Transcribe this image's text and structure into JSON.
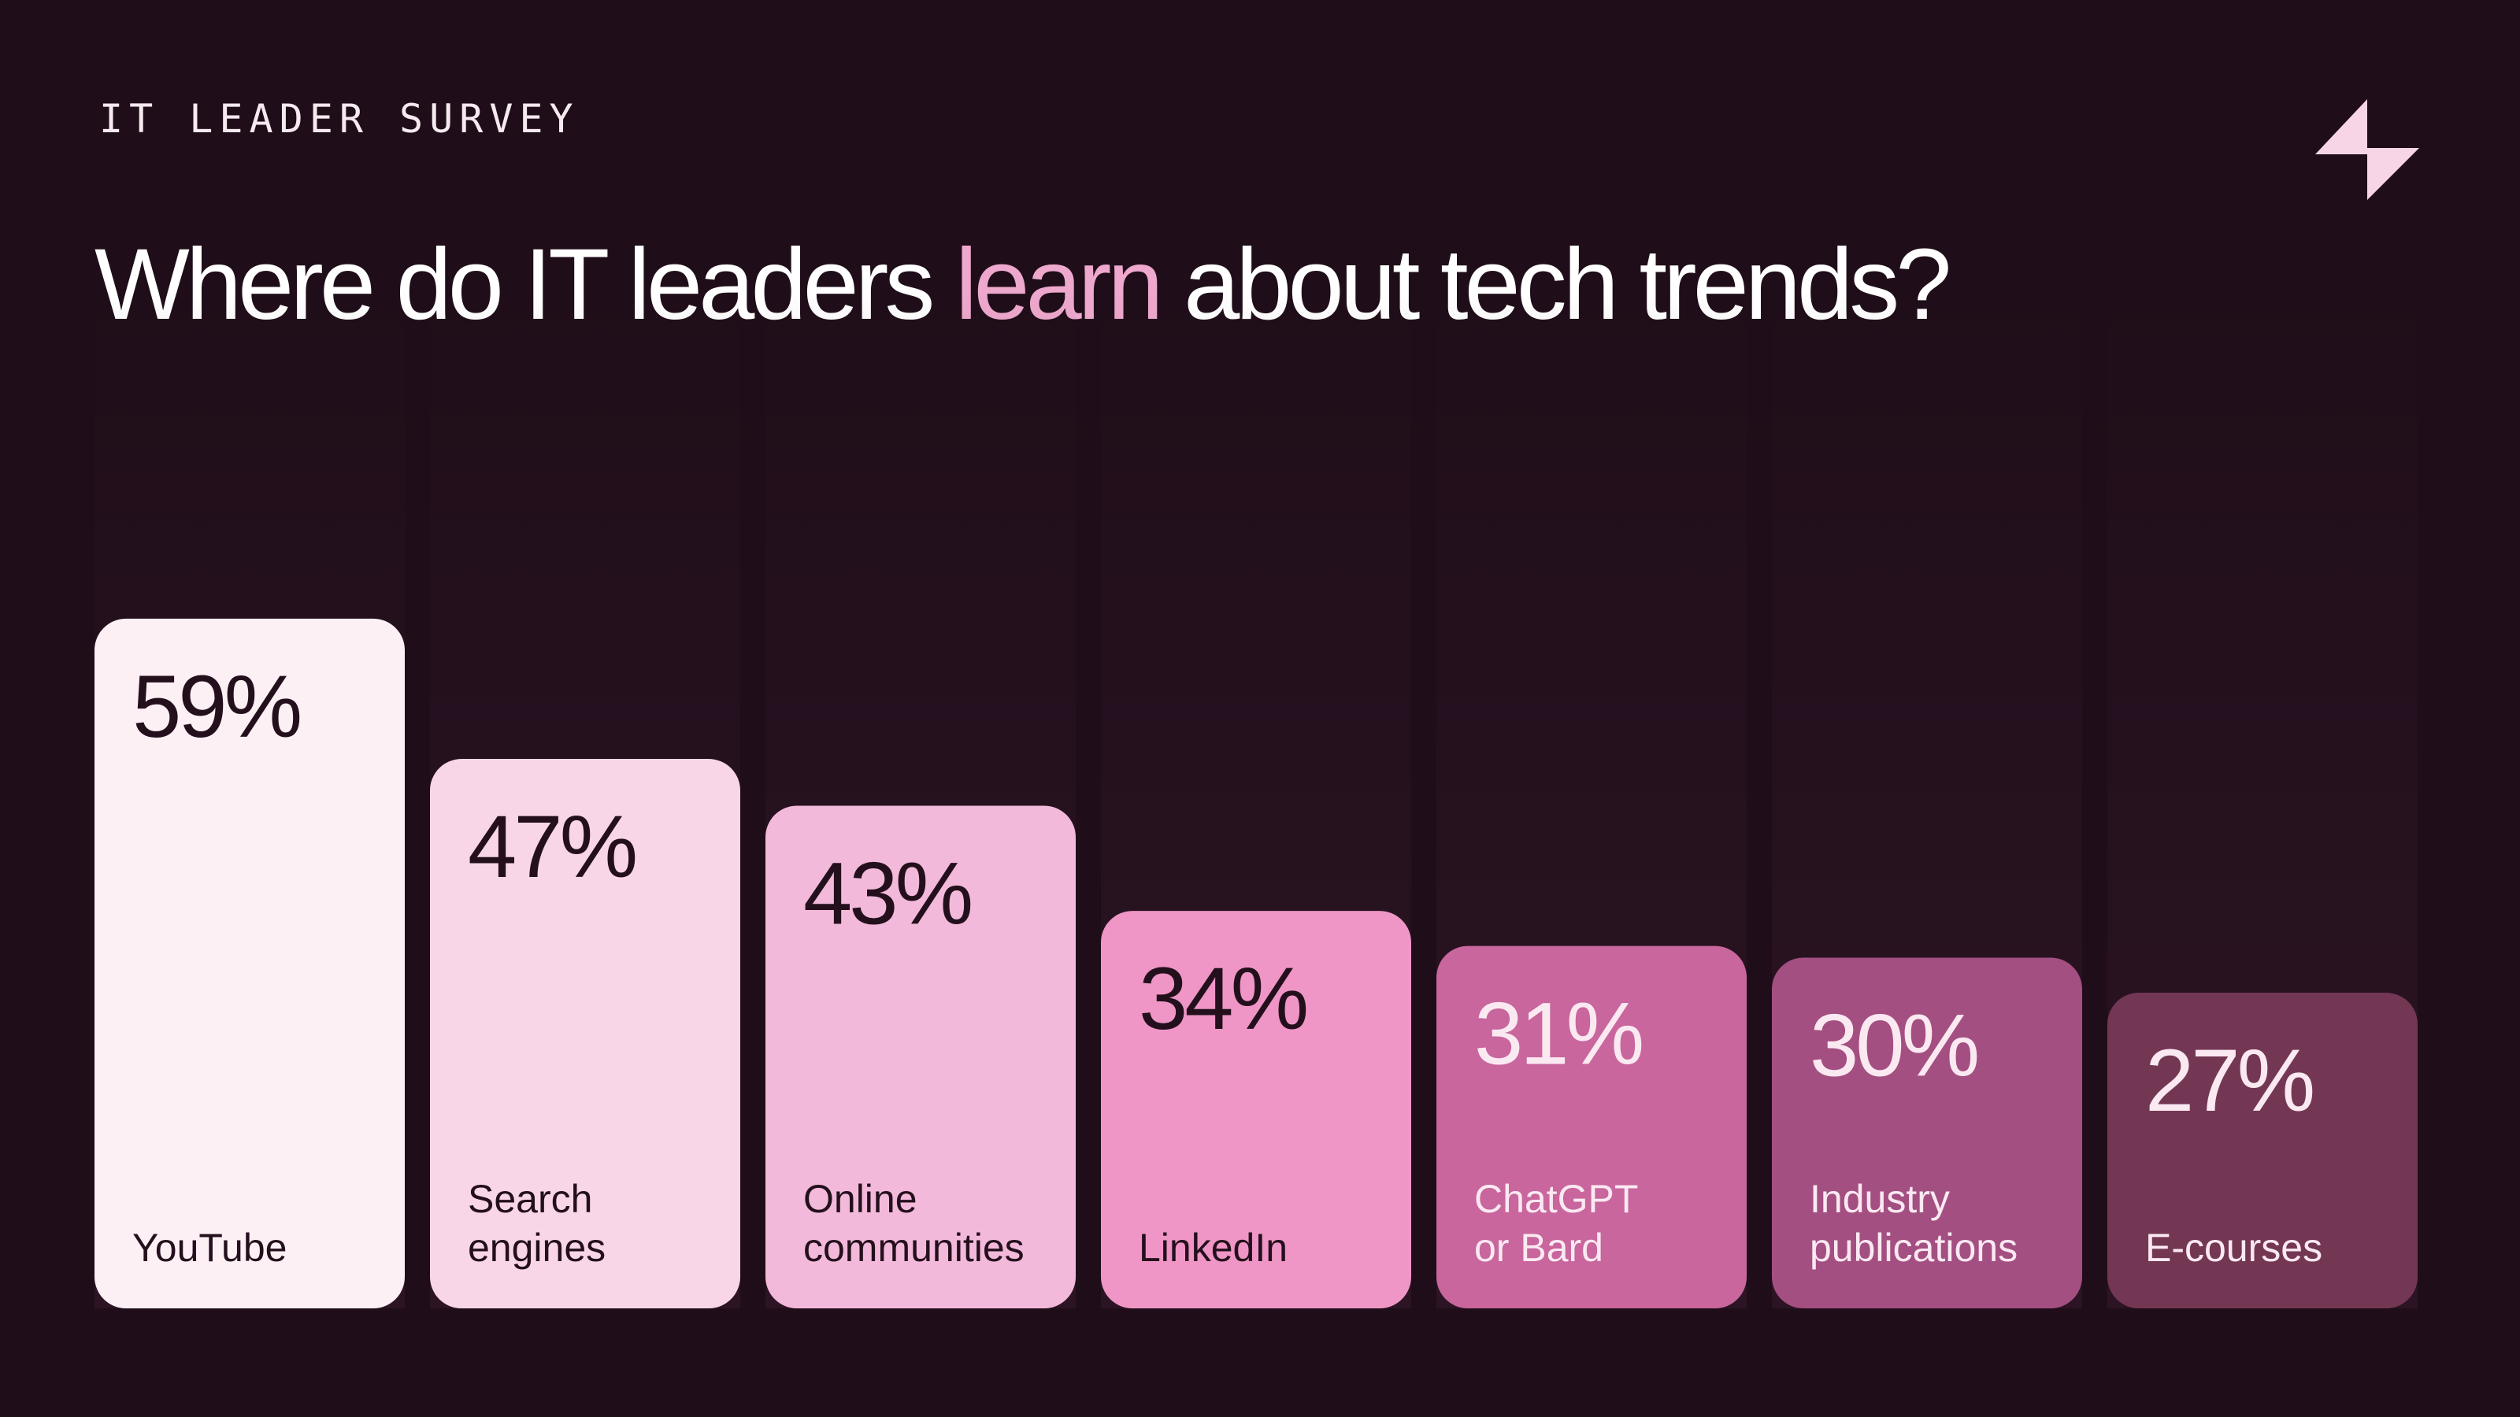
{
  "header": {
    "eyebrow": "IT LEADER SURVEY",
    "title_before": "Where do IT leaders ",
    "title_highlight": "learn",
    "title_after": " about tech trends?"
  },
  "logo": {
    "icon": "brand-logo-icon",
    "color": "#f7d5e6"
  },
  "colors": {
    "background": "#1f0e19",
    "accent": "#eea8cd",
    "dark_text": "#24101c",
    "light_text": "#fbe9f2"
  },
  "chart_data": {
    "type": "bar",
    "title": "Where do IT leaders learn about tech trends?",
    "value_suffix": "%",
    "bars": [
      {
        "label_lines": [
          "YouTube"
        ],
        "value": 59,
        "color": "#fcf0f5",
        "text": "dark"
      },
      {
        "label_lines": [
          "Search",
          "engines"
        ],
        "value": 47,
        "color": "#f8d6e7",
        "text": "dark"
      },
      {
        "label_lines": [
          "Online",
          "communities"
        ],
        "value": 43,
        "color": "#f3b9da",
        "text": "dark"
      },
      {
        "label_lines": [
          "LinkedIn"
        ],
        "value": 34,
        "color": "#ef96c6",
        "text": "dark"
      },
      {
        "label_lines": [
          "ChatGPT",
          "or Bard"
        ],
        "value": 31,
        "color": "#c8669d",
        "text": "light"
      },
      {
        "label_lines": [
          "Industry",
          "publications"
        ],
        "value": 30,
        "color": "#a44f82",
        "text": "light"
      },
      {
        "label_lines": [
          "E-courses"
        ],
        "value": 27,
        "color": "#733754",
        "text": "light"
      }
    ]
  }
}
